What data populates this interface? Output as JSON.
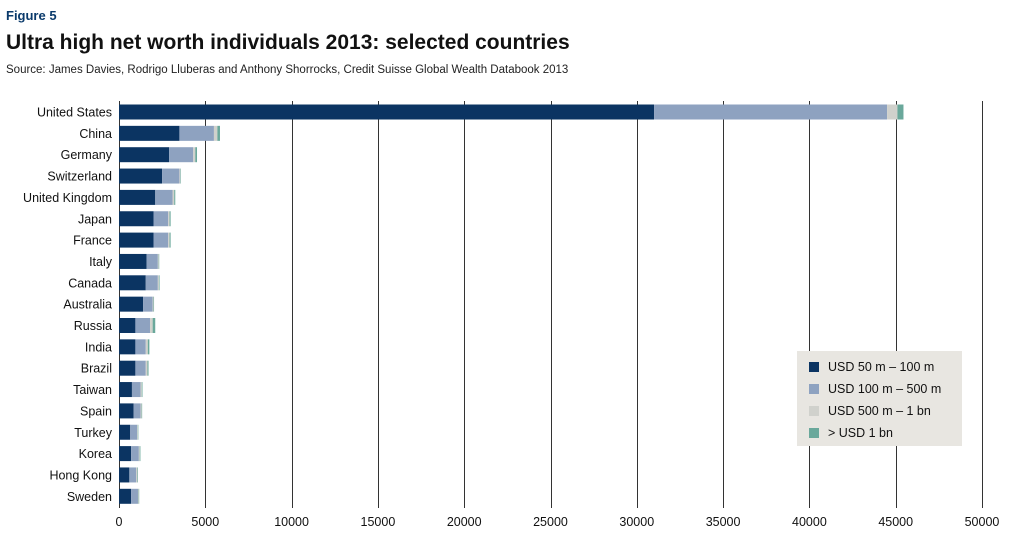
{
  "figure_label": "Figure 5",
  "colors": {
    "s1": "#0b3462",
    "s2": "#8ea2c0",
    "s3": "#d0d1cc",
    "s4": "#6aa89b",
    "grid": "#333333"
  },
  "chart_data": {
    "type": "bar",
    "orientation": "horizontal",
    "stacked": true,
    "title": "Ultra high net worth individuals 2013: selected countries",
    "subtitle": "Source: James Davies, Rodrigo Lluberas and Anthony Shorrocks, Credit Suisse Global Wealth Databook 2013",
    "categories": [
      "United States",
      "China",
      "Germany",
      "Switzerland",
      "United Kingdom",
      "Japan",
      "France",
      "Italy",
      "Canada",
      "Australia",
      "Russia",
      "India",
      "Brazil",
      "Taiwan",
      "Spain",
      "Turkey",
      "Korea",
      "Hong Kong",
      "Sweden"
    ],
    "series": [
      {
        "name": "USD 50 m – 100 m",
        "values": [
          31000,
          3500,
          2900,
          2500,
          2100,
          2000,
          2000,
          1600,
          1550,
          1400,
          950,
          950,
          950,
          750,
          850,
          650,
          700,
          600,
          700
        ]
      },
      {
        "name": "USD 100 m – 500 m",
        "values": [
          13500,
          2000,
          1400,
          1000,
          1000,
          850,
          850,
          650,
          700,
          550,
          850,
          600,
          600,
          500,
          400,
          400,
          450,
          400,
          400
        ]
      },
      {
        "name": "USD 500 m – 1 bn",
        "values": [
          600,
          200,
          120,
          50,
          100,
          80,
          80,
          50,
          60,
          50,
          150,
          120,
          100,
          70,
          60,
          40,
          50,
          70,
          40
        ]
      },
      {
        "name": "> USD 1 bn",
        "values": [
          350,
          150,
          100,
          30,
          60,
          60,
          60,
          30,
          40,
          30,
          150,
          90,
          60,
          40,
          30,
          30,
          40,
          30,
          30
        ]
      }
    ],
    "xlim": [
      0,
      50000
    ],
    "xticks": [
      0,
      5000,
      10000,
      15000,
      20000,
      25000,
      30000,
      35000,
      40000,
      45000,
      50000
    ],
    "xtick_labels": [
      "0",
      "5000",
      "10000",
      "15000",
      "20000",
      "25000",
      "30000",
      "35000",
      "40000",
      "45000",
      "50000"
    ],
    "grid": true,
    "legend": "bottom-right"
  }
}
